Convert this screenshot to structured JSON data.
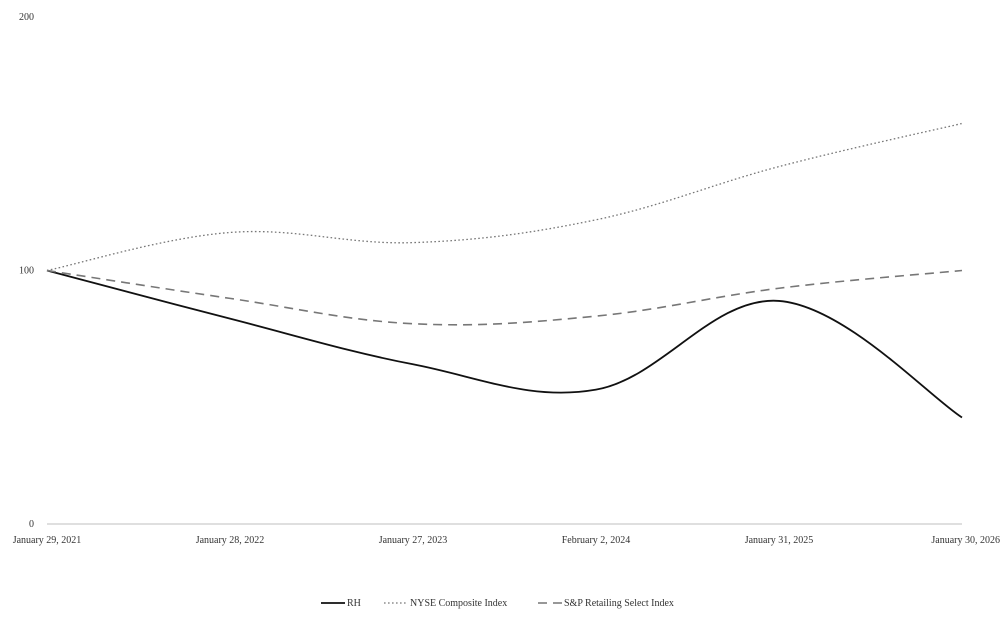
{
  "chart_data": {
    "type": "line",
    "title": "",
    "xlabel": "",
    "ylabel": "",
    "categories": [
      "January 29, 2021",
      "January 28, 2022",
      "January 27, 2023",
      "February 2, 2024",
      "January 31, 2025",
      "January 30, 2026"
    ],
    "y_ticks": [
      "0",
      "100",
      "200"
    ],
    "ylim": [
      0,
      200
    ],
    "grid": false,
    "legend_position": "bottom-center",
    "series": [
      {
        "name": "RH",
        "values": [
          100,
          81,
          63,
          53,
          88,
          42
        ],
        "color": "#111111",
        "style": "solid"
      },
      {
        "name": "NYSE Composite Index",
        "values": [
          100,
          115,
          111,
          120,
          141,
          158
        ],
        "color": "#777777",
        "style": "dotted"
      },
      {
        "name": "S&P Retailing Select Index",
        "values": [
          100,
          89,
          79,
          82,
          93,
          100
        ],
        "color": "#777777",
        "style": "dashed"
      }
    ]
  }
}
